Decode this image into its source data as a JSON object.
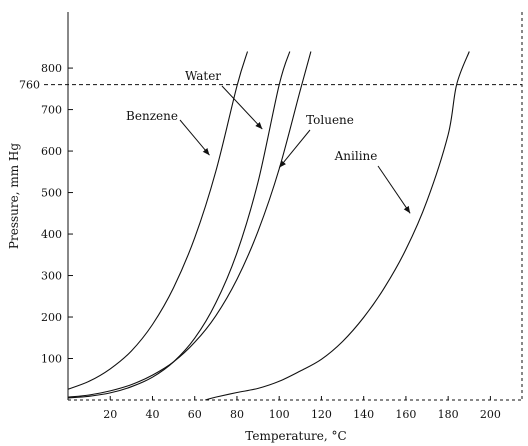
{
  "chart_data": {
    "type": "line",
    "xlabel": "Temperature, °C",
    "ylabel": "Pressure, mm Hg",
    "xlim": [
      0,
      210
    ],
    "ylim": [
      0,
      840
    ],
    "x_ticks": [
      20,
      40,
      60,
      80,
      100,
      120,
      140,
      160,
      180,
      200
    ],
    "x_tick_labels": [
      "20",
      "40",
      "60",
      "80",
      "100",
      "120",
      "140",
      "160",
      "180",
      "200"
    ],
    "y_ticks": [
      100,
      200,
      300,
      400,
      500,
      600,
      700,
      800
    ],
    "y_tick_labels": [
      "100",
      "200",
      "300",
      "400",
      "500",
      "600",
      "700",
      "800"
    ],
    "reference_line": {
      "y": 760,
      "label": "760",
      "style": "dashed"
    },
    "grid": false,
    "series": [
      {
        "name": "Benzene",
        "x": [
          0,
          10,
          20,
          30,
          40,
          50,
          60,
          70,
          80,
          85
        ],
        "y": [
          26,
          45,
          75,
          118,
          182,
          271,
          391,
          551,
          757,
          840
        ]
      },
      {
        "name": "Water",
        "x": [
          0,
          10,
          20,
          30,
          40,
          50,
          60,
          70,
          80,
          90,
          100,
          105
        ],
        "y": [
          5,
          9,
          17,
          32,
          55,
          92,
          149,
          234,
          355,
          526,
          760,
          840
        ]
      },
      {
        "name": "Toluene",
        "x": [
          0,
          10,
          20,
          30,
          40,
          50,
          60,
          70,
          80,
          90,
          100,
          110,
          115
        ],
        "y": [
          7,
          12,
          22,
          37,
          60,
          92,
          139,
          203,
          291,
          407,
          557,
          747,
          840
        ]
      },
      {
        "name": "Aniline",
        "x": [
          65,
          70,
          80,
          90,
          100,
          110,
          120,
          130,
          140,
          150,
          160,
          170,
          180,
          184,
          190
        ],
        "y": [
          0,
          7,
          18,
          28,
          45,
          70,
          98,
          141,
          199,
          272,
          363,
          480,
          640,
          760,
          840
        ]
      }
    ],
    "annotations": [
      {
        "text": "Benzene",
        "series": "Benzene",
        "arrow_to": [
          67,
          590
        ]
      },
      {
        "text": "Water",
        "series": "Water",
        "arrow_to": [
          92,
          653
        ]
      },
      {
        "text": "Toluene",
        "series": "Toluene",
        "arrow_to": [
          100,
          560
        ]
      },
      {
        "text": "Aniline",
        "series": "Aniline",
        "arrow_to": [
          162,
          450
        ]
      }
    ]
  }
}
